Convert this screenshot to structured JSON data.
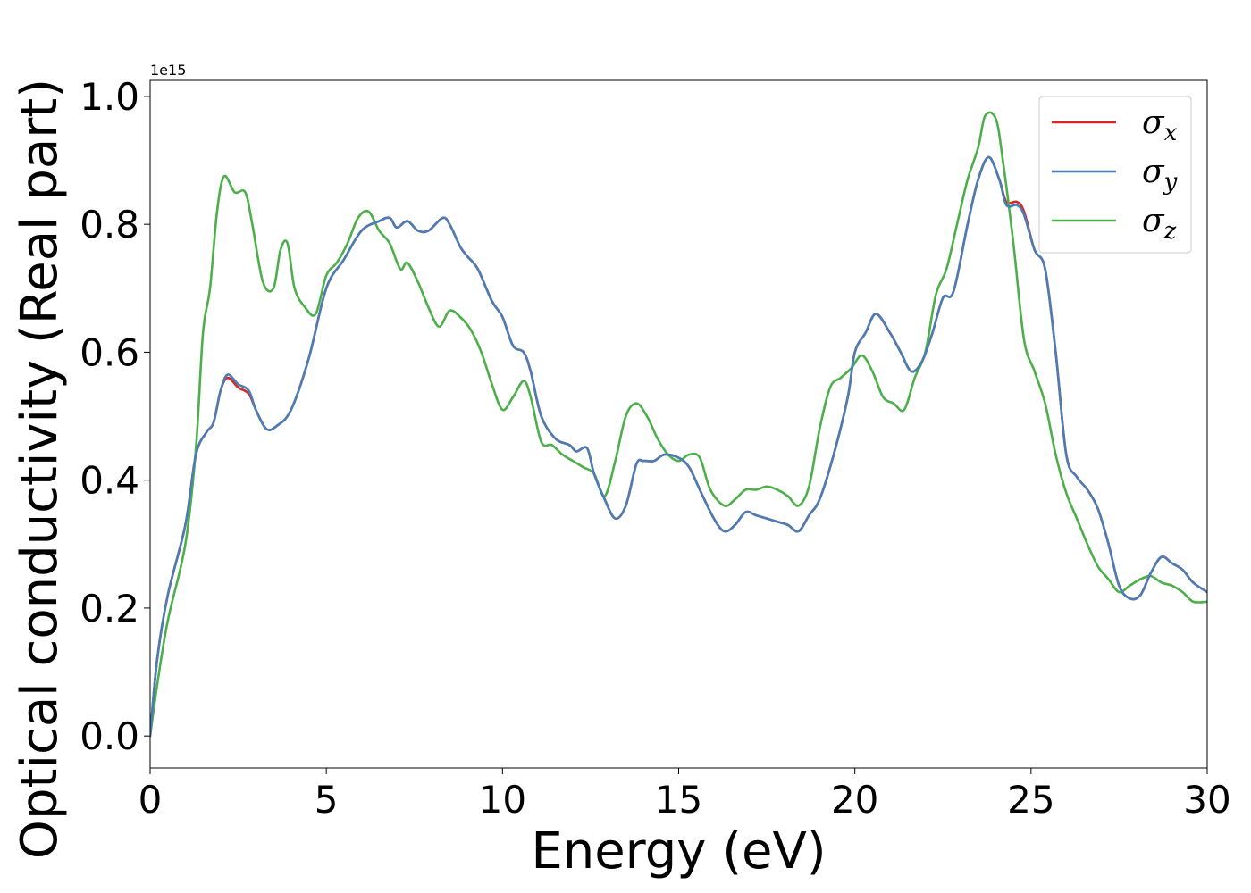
{
  "chart_data": {
    "type": "line",
    "xlabel": "Energy (eV)",
    "ylabel": "Optical conductivity (Real part)",
    "y_offset_label": "1e15",
    "xlim": [
      0,
      30
    ],
    "ylim": [
      -0.05,
      1.025
    ],
    "y_scale_factor": 1000000000000000.0,
    "xticks": [
      0,
      5,
      10,
      15,
      20,
      25,
      30
    ],
    "xtick_labels": [
      "0",
      "5",
      "10",
      "15",
      "20",
      "25",
      "30"
    ],
    "yticks": [
      0.0,
      0.2,
      0.4,
      0.6,
      0.8,
      1.0
    ],
    "ytick_labels": [
      "0.0",
      "0.2",
      "0.4",
      "0.6",
      "0.8",
      "1.0"
    ],
    "grid": false,
    "legend_position": "top-right",
    "colors": {
      "sigma_x": "#d62728",
      "sigma_y": "#4a7db5",
      "sigma_z": "#4daf4a",
      "frame": "#000000"
    },
    "series": [
      {
        "name": "σx",
        "symbol": "σ",
        "subscript": "x",
        "color": "#d62728",
        "x": [
          0,
          0.2,
          0.5,
          1,
          1.3,
          1.6,
          1.8,
          2.0,
          2.2,
          2.5,
          2.8,
          3.0,
          3.3,
          3.6,
          4.0,
          4.5,
          5.0,
          5.5,
          6.0,
          6.5,
          6.8,
          7.0,
          7.3,
          7.6,
          7.9,
          8.3,
          8.5,
          8.8,
          9.0,
          9.3,
          9.7,
          10.0,
          10.3,
          10.6,
          10.8,
          11.1,
          11.5,
          11.9,
          12.1,
          12.4,
          12.6,
          12.9,
          13.2,
          13.5,
          13.8,
          14.0,
          14.3,
          14.6,
          15.0,
          15.3,
          15.6,
          16.0,
          16.3,
          16.6,
          16.9,
          17.2,
          17.5,
          17.8,
          18.1,
          18.4,
          18.7,
          19.0,
          19.4,
          19.8,
          20.0,
          20.3,
          20.6,
          21.0,
          21.3,
          21.6,
          21.9,
          22.2,
          22.5,
          22.8,
          23.2,
          23.5,
          23.8,
          24.1,
          24.3,
          24.6,
          24.8,
          25.1,
          25.4,
          25.7,
          26.0,
          26.3,
          26.6,
          26.9,
          27.2,
          27.5,
          27.8,
          28.1,
          28.4,
          28.7,
          29.0,
          29.3,
          29.6,
          30.0
        ],
        "y": [
          0.0,
          0.12,
          0.22,
          0.33,
          0.44,
          0.475,
          0.49,
          0.54,
          0.56,
          0.545,
          0.535,
          0.51,
          0.48,
          0.485,
          0.51,
          0.59,
          0.7,
          0.745,
          0.79,
          0.805,
          0.81,
          0.795,
          0.805,
          0.79,
          0.79,
          0.81,
          0.8,
          0.765,
          0.75,
          0.73,
          0.68,
          0.655,
          0.61,
          0.6,
          0.57,
          0.5,
          0.465,
          0.455,
          0.445,
          0.45,
          0.41,
          0.37,
          0.34,
          0.36,
          0.425,
          0.43,
          0.43,
          0.44,
          0.435,
          0.42,
          0.385,
          0.34,
          0.32,
          0.33,
          0.35,
          0.345,
          0.34,
          0.335,
          0.33,
          0.32,
          0.345,
          0.37,
          0.44,
          0.53,
          0.6,
          0.63,
          0.66,
          0.63,
          0.6,
          0.57,
          0.585,
          0.63,
          0.685,
          0.695,
          0.8,
          0.87,
          0.905,
          0.87,
          0.835,
          0.835,
          0.82,
          0.76,
          0.73,
          0.6,
          0.44,
          0.405,
          0.385,
          0.355,
          0.3,
          0.235,
          0.215,
          0.22,
          0.255,
          0.28,
          0.27,
          0.26,
          0.24,
          0.225
        ]
      },
      {
        "name": "σy",
        "symbol": "σ",
        "subscript": "y",
        "color": "#4a7db5",
        "x": [
          0,
          0.2,
          0.5,
          1,
          1.3,
          1.6,
          1.8,
          2.0,
          2.2,
          2.5,
          2.8,
          3.0,
          3.3,
          3.6,
          4.0,
          4.5,
          5.0,
          5.5,
          6.0,
          6.5,
          6.8,
          7.0,
          7.3,
          7.6,
          7.9,
          8.3,
          8.5,
          8.8,
          9.0,
          9.3,
          9.7,
          10.0,
          10.3,
          10.6,
          10.8,
          11.1,
          11.5,
          11.9,
          12.1,
          12.4,
          12.6,
          12.9,
          13.2,
          13.5,
          13.8,
          14.0,
          14.3,
          14.6,
          15.0,
          15.3,
          15.6,
          16.0,
          16.3,
          16.6,
          16.9,
          17.2,
          17.5,
          17.8,
          18.1,
          18.4,
          18.7,
          19.0,
          19.4,
          19.8,
          20.0,
          20.3,
          20.6,
          21.0,
          21.3,
          21.6,
          21.9,
          22.2,
          22.5,
          22.8,
          23.2,
          23.5,
          23.8,
          24.1,
          24.3,
          24.6,
          24.8,
          25.1,
          25.4,
          25.7,
          26.0,
          26.3,
          26.6,
          26.9,
          27.2,
          27.5,
          27.8,
          28.1,
          28.4,
          28.7,
          29.0,
          29.3,
          29.6,
          30.0
        ],
        "y": [
          0.0,
          0.12,
          0.22,
          0.33,
          0.44,
          0.475,
          0.49,
          0.54,
          0.565,
          0.55,
          0.54,
          0.51,
          0.48,
          0.485,
          0.51,
          0.59,
          0.7,
          0.745,
          0.79,
          0.805,
          0.81,
          0.795,
          0.805,
          0.79,
          0.79,
          0.81,
          0.8,
          0.765,
          0.75,
          0.73,
          0.68,
          0.655,
          0.61,
          0.6,
          0.57,
          0.5,
          0.465,
          0.455,
          0.445,
          0.45,
          0.41,
          0.37,
          0.34,
          0.36,
          0.425,
          0.43,
          0.43,
          0.44,
          0.435,
          0.42,
          0.385,
          0.34,
          0.32,
          0.33,
          0.35,
          0.345,
          0.34,
          0.335,
          0.33,
          0.32,
          0.345,
          0.37,
          0.44,
          0.53,
          0.6,
          0.63,
          0.66,
          0.63,
          0.6,
          0.57,
          0.585,
          0.63,
          0.685,
          0.695,
          0.8,
          0.87,
          0.905,
          0.87,
          0.83,
          0.83,
          0.815,
          0.76,
          0.73,
          0.6,
          0.44,
          0.405,
          0.385,
          0.355,
          0.3,
          0.235,
          0.215,
          0.22,
          0.255,
          0.28,
          0.27,
          0.26,
          0.24,
          0.225
        ]
      },
      {
        "name": "σz",
        "symbol": "σ",
        "subscript": "z",
        "color": "#4daf4a",
        "x": [
          0,
          0.2,
          0.5,
          1,
          1.3,
          1.5,
          1.7,
          1.9,
          2.1,
          2.4,
          2.7,
          2.9,
          3.2,
          3.5,
          3.7,
          3.9,
          4.1,
          4.4,
          4.7,
          5.0,
          5.3,
          5.6,
          5.9,
          6.2,
          6.5,
          6.8,
          7.1,
          7.3,
          7.6,
          7.9,
          8.2,
          8.5,
          8.8,
          9.1,
          9.4,
          9.7,
          10.0,
          10.3,
          10.6,
          10.8,
          11.1,
          11.4,
          11.7,
          12.0,
          12.3,
          12.6,
          12.9,
          13.2,
          13.5,
          13.8,
          14.1,
          14.4,
          14.7,
          15.0,
          15.3,
          15.6,
          15.9,
          16.3,
          16.6,
          16.9,
          17.2,
          17.5,
          17.8,
          18.1,
          18.4,
          18.7,
          19.0,
          19.3,
          19.6,
          19.9,
          20.2,
          20.5,
          20.8,
          21.1,
          21.4,
          21.7,
          22.0,
          22.3,
          22.6,
          22.9,
          23.2,
          23.5,
          23.7,
          24.0,
          24.2,
          24.5,
          24.8,
          25.1,
          25.4,
          25.7,
          26.0,
          26.3,
          26.6,
          26.9,
          27.2,
          27.5,
          27.8,
          28.1,
          28.4,
          28.7,
          29.0,
          29.3,
          29.6,
          30.0
        ],
        "y": [
          0.0,
          0.08,
          0.18,
          0.3,
          0.45,
          0.63,
          0.7,
          0.82,
          0.875,
          0.85,
          0.85,
          0.8,
          0.71,
          0.7,
          0.76,
          0.77,
          0.7,
          0.67,
          0.66,
          0.72,
          0.74,
          0.77,
          0.81,
          0.82,
          0.79,
          0.77,
          0.73,
          0.74,
          0.71,
          0.67,
          0.64,
          0.665,
          0.655,
          0.635,
          0.6,
          0.55,
          0.51,
          0.53,
          0.555,
          0.53,
          0.46,
          0.455,
          0.44,
          0.43,
          0.42,
          0.41,
          0.375,
          0.43,
          0.5,
          0.52,
          0.5,
          0.465,
          0.44,
          0.43,
          0.44,
          0.435,
          0.385,
          0.36,
          0.37,
          0.385,
          0.385,
          0.39,
          0.385,
          0.375,
          0.36,
          0.39,
          0.48,
          0.545,
          0.56,
          0.575,
          0.595,
          0.57,
          0.53,
          0.52,
          0.51,
          0.56,
          0.6,
          0.69,
          0.73,
          0.8,
          0.87,
          0.92,
          0.97,
          0.965,
          0.9,
          0.77,
          0.62,
          0.57,
          0.52,
          0.44,
          0.38,
          0.34,
          0.3,
          0.265,
          0.245,
          0.225,
          0.235,
          0.245,
          0.25,
          0.24,
          0.235,
          0.225,
          0.21,
          0.21
        ]
      }
    ]
  }
}
